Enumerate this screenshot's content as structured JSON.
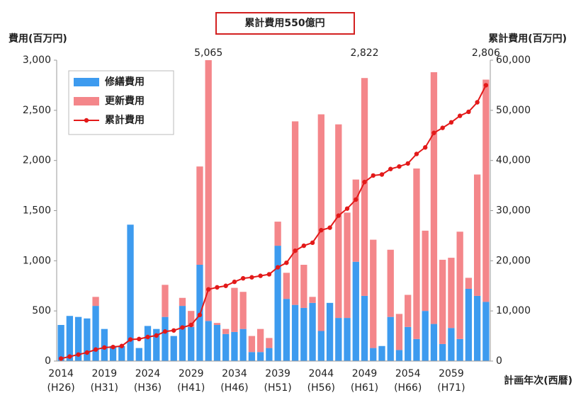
{
  "chart_data": {
    "type": "bar",
    "title": "累計費用550億円",
    "y_label": "費用(百万円)",
    "y2_label": "累計費用(百万円)",
    "x_label": "計画年次(西暦)",
    "categories": [
      "2014",
      null,
      null,
      null,
      null,
      "2019",
      null,
      null,
      null,
      null,
      "2024",
      null,
      null,
      null,
      null,
      "2029",
      null,
      null,
      null,
      null,
      "2034",
      null,
      null,
      null,
      null,
      "2039",
      null,
      null,
      null,
      null,
      "2044",
      null,
      null,
      null,
      null,
      "2049",
      null,
      null,
      null,
      null,
      "2054",
      null,
      null,
      null,
      null,
      "2059",
      null,
      null,
      null,
      null
    ],
    "category_sublabels": [
      "(H26)",
      null,
      null,
      null,
      null,
      "(H31)",
      null,
      null,
      null,
      null,
      "(H36)",
      null,
      null,
      null,
      null,
      "(H41)",
      null,
      null,
      null,
      null,
      "(H46)",
      null,
      null,
      null,
      null,
      "(H51)",
      null,
      null,
      null,
      null,
      "(H56)",
      null,
      null,
      null,
      null,
      "(H61)",
      null,
      null,
      null,
      null,
      "(H66)",
      null,
      null,
      null,
      null,
      "(H71)",
      null,
      null,
      null,
      null
    ],
    "series": [
      {
        "name": "修繕費用",
        "color": "#3d9bef",
        "values": [
          360,
          450,
          440,
          425,
          550,
          320,
          150,
          150,
          1360,
          130,
          350,
          320,
          440,
          250,
          550,
          340,
          960,
          400,
          360,
          270,
          290,
          320,
          90,
          90,
          130,
          1150,
          620,
          560,
          530,
          580,
          300,
          580,
          430,
          430,
          990,
          650,
          130,
          150,
          440,
          110,
          340,
          220,
          500,
          370,
          170,
          330,
          220,
          720,
          650,
          590
        ]
      },
      {
        "name": "更新費用",
        "color": "#f4868a",
        "values": [
          0,
          0,
          0,
          0,
          90,
          0,
          0,
          0,
          0,
          0,
          0,
          0,
          320,
          0,
          80,
          160,
          980,
          4665,
          20,
          50,
          440,
          370,
          160,
          230,
          100,
          240,
          260,
          1830,
          430,
          60,
          2160,
          0,
          1930,
          1050,
          820,
          2172,
          1080,
          0,
          670,
          360,
          320,
          1700,
          800,
          2510,
          840,
          700,
          1070,
          110,
          1210,
          2216
        ]
      },
      {
        "name": "累計費用",
        "color": "#e31919",
        "type": "line",
        "axis": "y2",
        "values": [
          500,
          900,
          1300,
          1700,
          2300,
          2700,
          2800,
          3000,
          4300,
          4400,
          4800,
          5100,
          5900,
          6100,
          6700,
          7200,
          9200,
          14300,
          14700,
          15000,
          15800,
          16500,
          16700,
          17000,
          17300,
          18700,
          19600,
          22000,
          23000,
          23600,
          26100,
          26600,
          29000,
          30400,
          32200,
          35700,
          37000,
          37200,
          38300,
          38800,
          39400,
          41300,
          42600,
          45500,
          46500,
          47600,
          48900,
          49700,
          51600,
          55000
        ]
      }
    ],
    "annotations": [
      {
        "value": 5065,
        "label": "5,065"
      },
      {
        "value": 2822,
        "label": "2,822"
      },
      {
        "value": 2806,
        "label": "2,806"
      }
    ],
    "stacked": true,
    "ylim": [
      0,
      3000
    ],
    "yticks": [
      0,
      500,
      {
        "value": 1000,
        "label": "1,000"
      },
      {
        "value": 1500,
        "label": "1,500"
      },
      {
        "value": 2000,
        "label": "2,000"
      },
      {
        "value": 2500,
        "label": "2,500"
      },
      {
        "value": 3000,
        "label": "3,000"
      }
    ],
    "y2lim": [
      0,
      60000
    ],
    "y2ticks": [
      0,
      {
        "value": 10000,
        "label": "10,000"
      },
      {
        "value": 20000,
        "label": "20,000"
      },
      {
        "value": 30000,
        "label": "30,000"
      },
      {
        "value": 40000,
        "label": "40,000"
      },
      {
        "value": 50000,
        "label": "50,000"
      },
      {
        "value": 60000,
        "label": "60,000"
      }
    ],
    "grid": false,
    "legend": "upper left"
  }
}
